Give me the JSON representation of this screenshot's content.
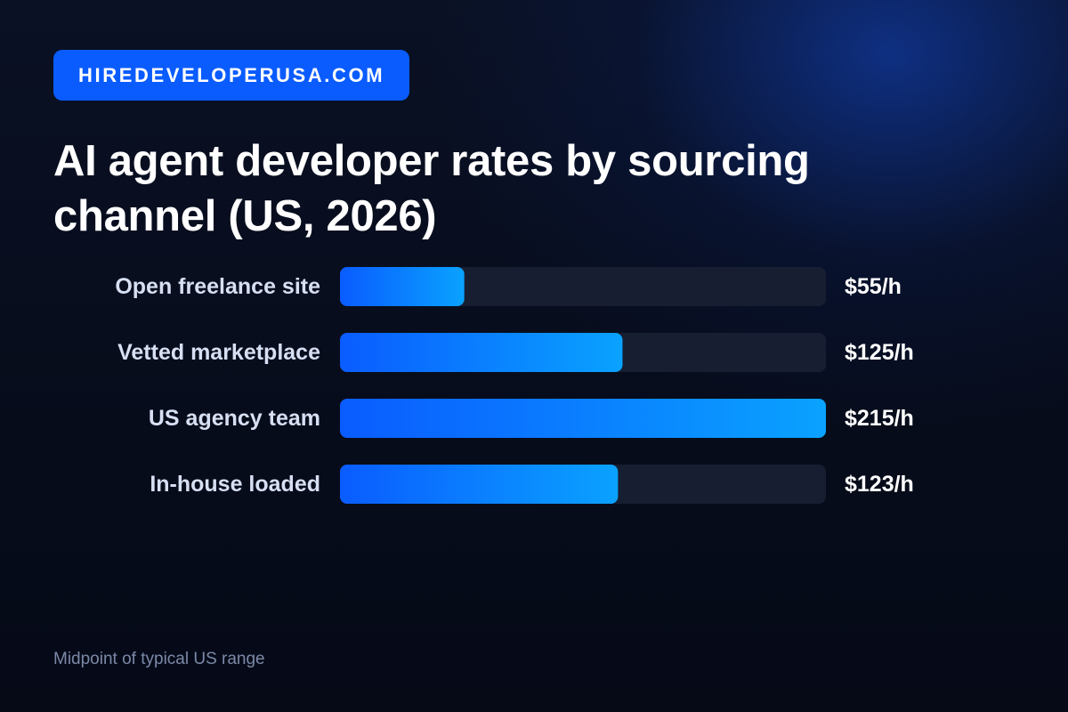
{
  "brand": {
    "label": "HIREDEVELOPERUSA.COM"
  },
  "footnote": "Midpoint of typical US range",
  "colors": {
    "brand_bg": "#0a5cff",
    "bar_start": "#0a5cff",
    "bar_end": "#0aa2ff",
    "track": "#171e31",
    "label_text": "#d7dff3",
    "value_text": "#ffffff"
  },
  "chart_data": {
    "type": "bar",
    "orientation": "horizontal",
    "title": "AI agent developer rates by sourcing channel (US, 2026)",
    "categories": [
      "Open freelance site",
      "Vetted marketplace",
      "US agency team",
      "In-house loaded"
    ],
    "values": [
      55,
      125,
      215,
      123
    ],
    "value_labels": [
      "$55/h",
      "$125/h",
      "$215/h",
      "$123/h"
    ],
    "unit": "$/h",
    "xlim": [
      0,
      215
    ],
    "grid": false,
    "legend": "none"
  }
}
